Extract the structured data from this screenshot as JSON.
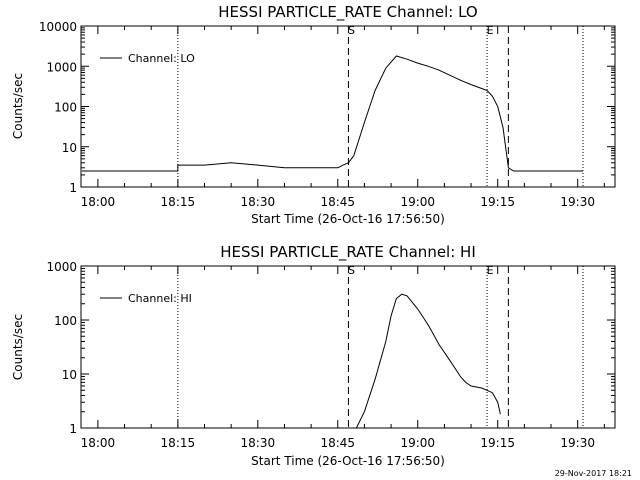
{
  "footer": {
    "timestamp": "29-Nov-2017 18:21"
  },
  "chart_data": [
    {
      "type": "line",
      "title": "HESSI PARTICLE_RATE Channel: LO",
      "xlabel": "Start Time (26-Oct-16 17:56:50)",
      "ylabel": "Counts/sec",
      "yscale": "log",
      "ylim": [
        1,
        10000
      ],
      "xlim": [
        "17:56:50",
        "19:37:00"
      ],
      "x_ticks": [
        "18:00",
        "18:15",
        "18:30",
        "18:45",
        "19:00",
        "19:15",
        "19:30"
      ],
      "y_ticks": [
        "1",
        "10",
        "100",
        "1000",
        "10000"
      ],
      "legend": {
        "label": "Channel: LO",
        "position": "top-left"
      },
      "markers": [
        {
          "label": "S",
          "time": "18:47",
          "style": "dashed"
        },
        {
          "label": "E",
          "time": "19:17",
          "style": "dashed"
        }
      ],
      "marker_labels": [
        {
          "label": "S",
          "time": "18:47"
        },
        {
          "label": "E",
          "time": "19:13"
        }
      ],
      "night_lines": [
        "18:15",
        "19:13",
        "19:31"
      ],
      "series": [
        {
          "x": [
            "17:57",
            "18:00",
            "18:05",
            "18:10",
            "18:15",
            "18:15",
            "18:20",
            "18:25",
            "18:30",
            "18:35",
            "18:40",
            "18:45",
            "18:46",
            "18:47",
            "18:48",
            "18:50",
            "18:52",
            "18:54",
            "18:56",
            "18:58",
            "19:00",
            "19:02",
            "19:04",
            "19:06",
            "19:08",
            "19:10",
            "19:12",
            "19:13",
            "19:14",
            "19:15",
            "19:16",
            "19:17",
            "19:18",
            "19:20",
            "19:25",
            "19:31"
          ],
          "y": [
            2.5,
            2.5,
            2.5,
            2.5,
            2.5,
            3.5,
            3.5,
            4,
            3.5,
            3,
            3,
            3,
            3.5,
            4,
            6,
            40,
            250,
            900,
            1800,
            1500,
            1200,
            1000,
            800,
            600,
            450,
            350,
            280,
            250,
            180,
            100,
            30,
            3,
            2.5,
            2.5,
            2.5,
            2.5
          ]
        }
      ]
    },
    {
      "type": "line",
      "title": "HESSI PARTICLE_RATE Channel: HI",
      "xlabel": "Start Time (26-Oct-16 17:56:50)",
      "ylabel": "Counts/sec",
      "yscale": "log",
      "ylim": [
        1,
        1000
      ],
      "xlim": [
        "17:56:50",
        "19:37:00"
      ],
      "x_ticks": [
        "18:00",
        "18:15",
        "18:30",
        "18:45",
        "19:00",
        "19:15",
        "19:30"
      ],
      "y_ticks": [
        "1",
        "10",
        "100",
        "1000"
      ],
      "legend": {
        "label": "Channel: HI",
        "position": "top-left"
      },
      "markers": [
        {
          "label": "S",
          "time": "18:47",
          "style": "dashed"
        },
        {
          "label": "E",
          "time": "19:17",
          "style": "dashed"
        }
      ],
      "marker_labels": [
        {
          "label": "S",
          "time": "18:47"
        },
        {
          "label": "E",
          "time": "19:13"
        }
      ],
      "night_lines": [
        "18:15",
        "19:13",
        "19:31"
      ],
      "series": [
        {
          "x": [
            "18:48.5",
            "18:50",
            "18:52",
            "18:54",
            "18:55",
            "18:56",
            "18:57",
            "18:58",
            "19:00",
            "19:02",
            "19:04",
            "19:06",
            "19:08",
            "19:09",
            "19:10",
            "19:12",
            "19:13",
            "19:14",
            "19:15",
            "19:15.5"
          ],
          "y": [
            1,
            2,
            8,
            40,
            120,
            250,
            300,
            280,
            160,
            80,
            35,
            18,
            9,
            7,
            6,
            5.5,
            5,
            4.5,
            3,
            1.8
          ]
        }
      ]
    }
  ]
}
